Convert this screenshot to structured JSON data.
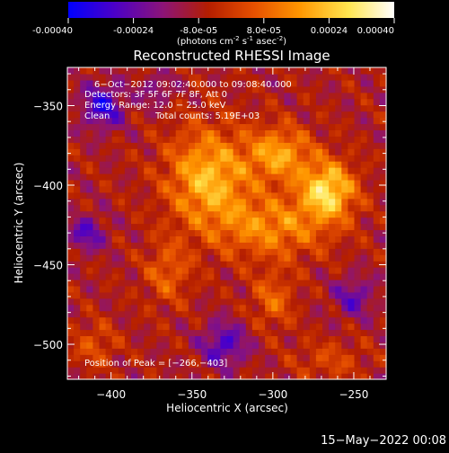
{
  "colorbar": {
    "ticks": [
      "-0.00040",
      "-0.00024",
      "-8.0e-05",
      "8.0e-05",
      "0.00024",
      "0.00040"
    ],
    "tick_values": [
      -0.0004,
      -0.00024,
      -8e-05,
      8e-05,
      0.00024,
      0.0004
    ],
    "range": [
      -0.0004,
      0.0004
    ],
    "units_main": "(photons cm",
    "units_sup1": "-2",
    "units_mid": " s",
    "units_sup2": "-1",
    "units_mid2": " asec",
    "units_sup3": "-2",
    "units_end": ")",
    "colors": [
      "#0000ff",
      "#4b00c8",
      "#8c1478",
      "#b41e00",
      "#e65000",
      "#ff9600",
      "#ffe650",
      "#ffffff"
    ]
  },
  "chart_data": {
    "type": "heatmap",
    "title": "Reconstructed RHESSI Image",
    "xlabel": "Heliocentric X (arcsec)",
    "ylabel": "Heliocentric Y (arcsec)",
    "xlim": [
      -427,
      -230
    ],
    "ylim": [
      -522,
      -326
    ],
    "x_ticks": [
      -400,
      -350,
      -300,
      -250
    ],
    "y_ticks": [
      -350,
      -400,
      -450,
      -500
    ],
    "x_tick_labels": [
      "−400",
      "−350",
      "−300",
      "−250"
    ],
    "y_tick_labels": [
      "−350",
      "−400",
      "−450",
      "−500"
    ],
    "peak": [
      -266,
      -403
    ],
    "annotations": [
      "6−Oct−2012 09:02:40.000 to 09:08:40.000",
      "Detectors: 3F 5F 6F 7F 8F, Att 0",
      "Energy Range: 12.0 − 25.0 keV",
      "Clean",
      "Total counts: 5.19E+03"
    ],
    "peak_label": "Position of Peak = [−266,−403]",
    "emission_regions": [
      {
        "x": -340,
        "y": -395,
        "sx": 18,
        "sy": 22,
        "amp": 0.0003
      },
      {
        "x": -296,
        "y": -380,
        "sx": 14,
        "sy": 12,
        "amp": 0.00026
      },
      {
        "x": -266,
        "y": -403,
        "sx": 12,
        "sy": 13,
        "amp": 0.00036
      },
      {
        "x": -300,
        "y": -426,
        "sx": 24,
        "sy": 14,
        "amp": 0.00022
      },
      {
        "x": -365,
        "y": -455,
        "sx": 10,
        "sy": 14,
        "amp": 0.00015
      },
      {
        "x": -300,
        "y": -472,
        "sx": 9,
        "sy": 12,
        "amp": 0.00016
      },
      {
        "x": -410,
        "y": -500,
        "sx": 10,
        "sy": 10,
        "amp": 0.00012
      },
      {
        "x": -265,
        "y": -510,
        "sx": 16,
        "sy": 9,
        "amp": 0.0001
      },
      {
        "x": -405,
        "y": -350,
        "sx": 9,
        "sy": 10,
        "amp": -0.00024
      },
      {
        "x": -330,
        "y": -500,
        "sx": 10,
        "sy": 10,
        "amp": -0.0002
      },
      {
        "x": -250,
        "y": -470,
        "sx": 9,
        "sy": 9,
        "amp": -0.00016
      },
      {
        "x": -415,
        "y": -430,
        "sx": 8,
        "sy": 8,
        "amp": -0.00018
      },
      {
        "x": -372,
        "y": -340,
        "sx": 7,
        "sy": 7,
        "amp": -0.00012
      }
    ]
  },
  "footer": {
    "timestamp": "15−May−2022 00:08"
  }
}
